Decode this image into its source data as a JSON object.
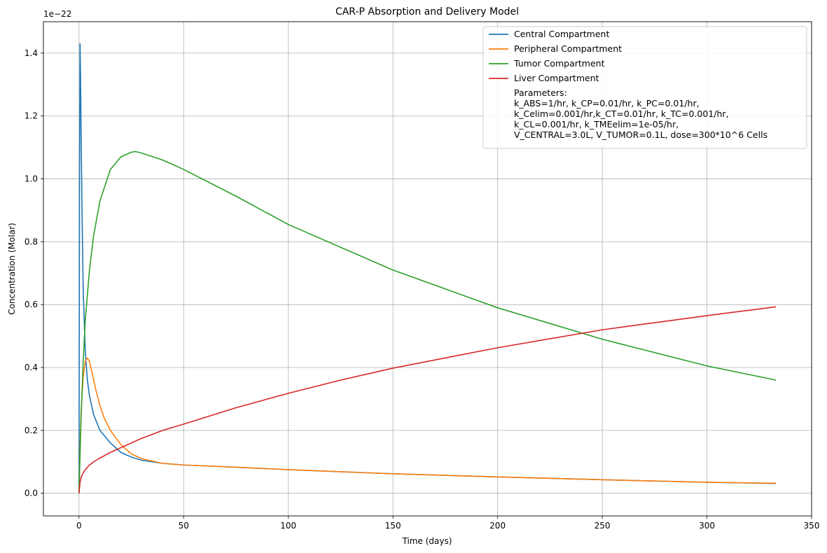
{
  "chart_data": {
    "type": "line",
    "title": "CAR-P Absorption and Delivery Model",
    "xlabel": "Time (days)",
    "ylabel": "Concentration (Molar)",
    "y_offset_label": "1e−22",
    "xlim": [
      -17,
      350
    ],
    "ylim": [
      -0.072,
      1.5
    ],
    "x_scale": "linear",
    "y_scale": "linear",
    "grid": true,
    "legend_position": "top-right",
    "x_ticks": [
      0,
      50,
      100,
      150,
      200,
      250,
      300,
      350
    ],
    "x_tick_labels": [
      "0",
      "50",
      "100",
      "150",
      "200",
      "250",
      "300",
      "350"
    ],
    "y_ticks": [
      0.0,
      0.2,
      0.4,
      0.6,
      0.8,
      1.0,
      1.2,
      1.4
    ],
    "y_tick_labels": [
      "0.0",
      "0.2",
      "0.4",
      "0.6",
      "0.8",
      "1.0",
      "1.2",
      "1.4"
    ],
    "series": [
      {
        "name": "Central Compartment",
        "color": "#1f77b4",
        "x": [
          0,
          0.25,
          0.5,
          0.75,
          1.0,
          1.5,
          2,
          3,
          4,
          5,
          7,
          10,
          15,
          20,
          25,
          30,
          40,
          50,
          75,
          100,
          150,
          200,
          250,
          300,
          333
        ],
        "y": [
          0.0,
          1.0,
          1.43,
          1.32,
          1.15,
          0.87,
          0.65,
          0.45,
          0.36,
          0.31,
          0.25,
          0.2,
          0.16,
          0.13,
          0.115,
          0.105,
          0.095,
          0.09,
          0.083,
          0.075,
          0.062,
          0.052,
          0.043,
          0.035,
          0.031
        ]
      },
      {
        "name": "Peripheral Compartment",
        "color": "#ff7f0e",
        "x": [
          0,
          0.5,
          1,
          2,
          3,
          4,
          5,
          6,
          8,
          10,
          12,
          15,
          20,
          25,
          30,
          40,
          50,
          75,
          100,
          150,
          200,
          250,
          300,
          333
        ],
        "y": [
          0.0,
          0.15,
          0.26,
          0.37,
          0.42,
          0.43,
          0.42,
          0.39,
          0.33,
          0.28,
          0.24,
          0.2,
          0.155,
          0.125,
          0.11,
          0.095,
          0.09,
          0.083,
          0.075,
          0.062,
          0.052,
          0.043,
          0.035,
          0.032
        ]
      },
      {
        "name": "Tumor Compartment",
        "color": "#2ca02c",
        "x": [
          0,
          0.5,
          1,
          2,
          3,
          5,
          7,
          10,
          15,
          20,
          25,
          27,
          30,
          40,
          50,
          75,
          100,
          150,
          200,
          250,
          300,
          333
        ],
        "y": [
          0.0,
          0.12,
          0.24,
          0.42,
          0.55,
          0.71,
          0.82,
          0.93,
          1.03,
          1.07,
          1.085,
          1.087,
          1.082,
          1.06,
          1.03,
          0.945,
          0.855,
          0.71,
          0.59,
          0.49,
          0.405,
          0.36
        ]
      },
      {
        "name": "Liver Compartment",
        "color": "#d62728",
        "x": [
          0,
          0.5,
          1,
          2,
          3,
          5,
          7,
          10,
          15,
          20,
          30,
          40,
          50,
          75,
          100,
          125,
          150,
          200,
          250,
          300,
          333
        ],
        "y": [
          0.0,
          0.035,
          0.05,
          0.065,
          0.075,
          0.09,
          0.1,
          0.112,
          0.13,
          0.145,
          0.175,
          0.2,
          0.22,
          0.272,
          0.318,
          0.36,
          0.398,
          0.463,
          0.52,
          0.565,
          0.593
        ]
      }
    ],
    "legend_note": [
      "Parameters:",
      "k_ABS=1/hr, k_CP=0.01/hr, k_PC=0.01/hr,",
      "k_Celim=0.001/hr,k_CT=0.01/hr, k_TC=0.001/hr,",
      "k_CL=0.001/hr, k_TMEelim=1e-05/hr,",
      "V_CENTRAL=3.0L, V_TUMOR=0.1L, dose=300*10^6 Cells"
    ]
  }
}
